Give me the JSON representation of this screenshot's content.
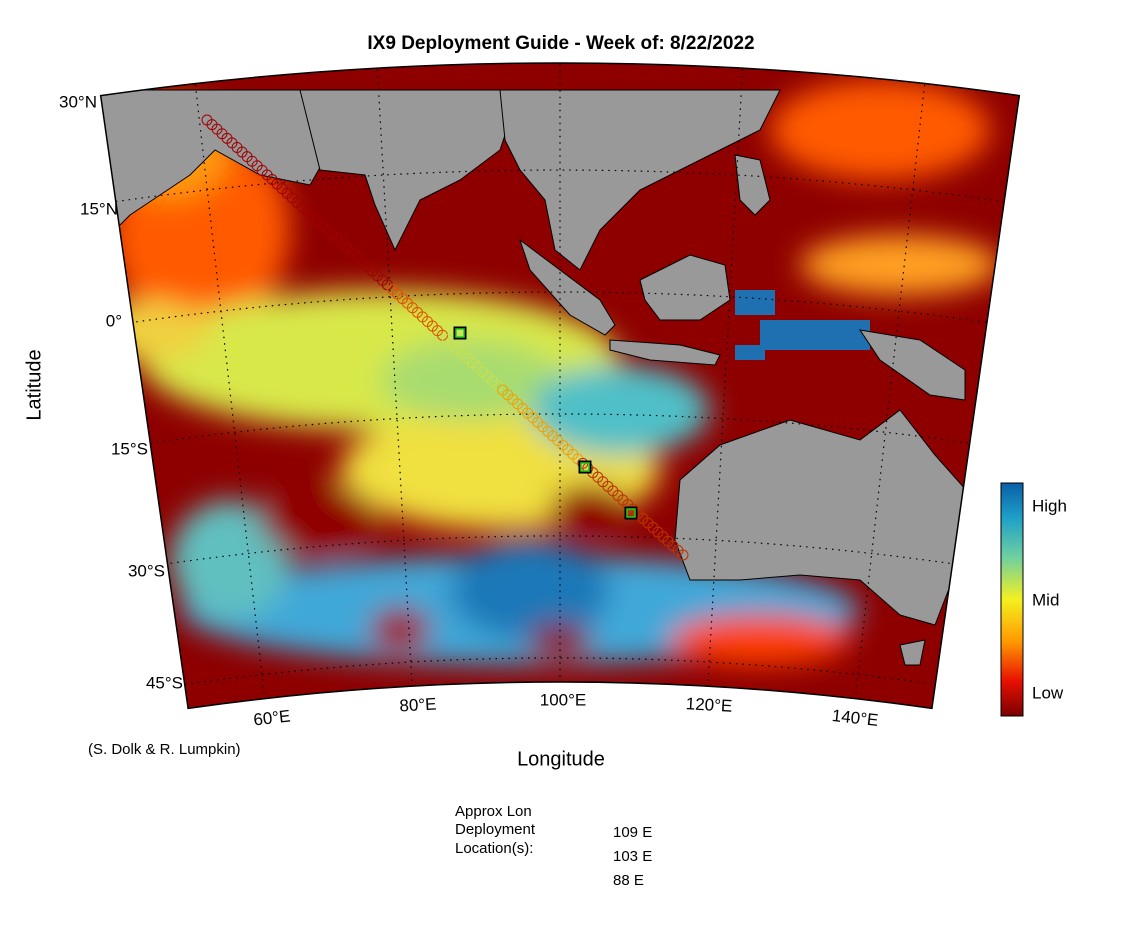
{
  "header": {
    "title": "IX9 Deployment Guide - Week of: 8/22/2022"
  },
  "map": {
    "latitude_labels": [
      "30°N",
      "15°N",
      "0°",
      "15°S",
      "30°S",
      "45°S"
    ],
    "longitude_labels": [
      "60°E",
      "80°E",
      "100°E",
      "120°E",
      "140°E"
    ],
    "x_axis_label": "Longitude",
    "y_axis_label": "Latitude"
  },
  "colorbar": {
    "labels": [
      "High",
      "Mid",
      "Low"
    ]
  },
  "credit": "(S. Dolk & R. Lumpkin)",
  "deployment": {
    "heading": [
      "Approx Lon",
      "Deployment",
      "Location(s):"
    ],
    "locations": [
      "109 E",
      "103 E",
      "88 E"
    ]
  }
}
